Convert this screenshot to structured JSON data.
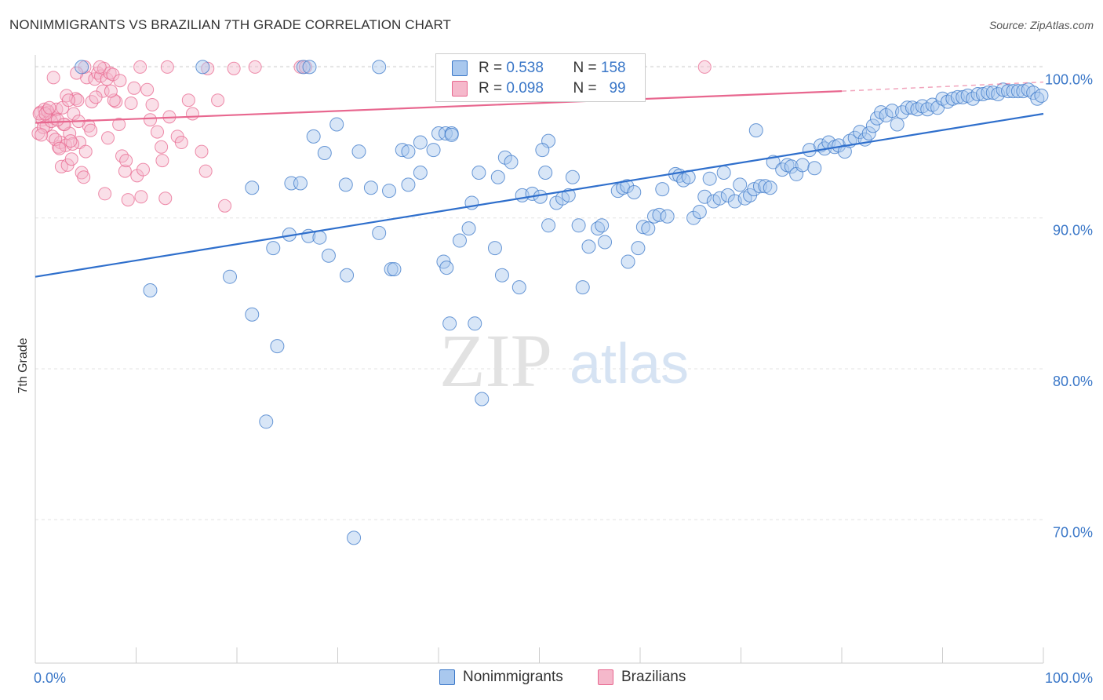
{
  "title": "NONIMMIGRANTS VS BRAZILIAN 7TH GRADE CORRELATION CHART",
  "source": "Source: ZipAtlas.com",
  "watermark": {
    "zip": "ZIP",
    "atlas": "atlas"
  },
  "legend": {
    "rows": [
      {
        "r_label": "R =",
        "r_value": "0.538",
        "n_label": "N =",
        "n_value": "158"
      },
      {
        "r_label": "R =",
        "r_value": "0.098",
        "n_label": "N =",
        "n_value": "99"
      }
    ]
  },
  "bottom_legend": {
    "series0": "Nonimmigrants",
    "series1": "Brazilians"
  },
  "colors": {
    "blue": "#3a77c8",
    "blue_fill": "#a9c8ee",
    "blue_line": "#2f6fcc",
    "pink": "#e8678f",
    "pink_fill": "#f5b8cb",
    "pink_line": "#e8678f",
    "grid": "#e3e3e3",
    "tick_label": "#3a77c8"
  },
  "chart_data": {
    "type": "scatter",
    "title": "NONIMMIGRANTS VS BRAZILIAN 7TH GRADE CORRELATION CHART",
    "xlabel": "",
    "ylabel": "7th Grade",
    "xlim": [
      0,
      100
    ],
    "ylim": [
      60.5,
      100.8
    ],
    "x_tick_labels": [
      "0.0%",
      "100.0%"
    ],
    "y_ticks": [
      70,
      80,
      90,
      100
    ],
    "y_tick_labels": [
      "70.0%",
      "80.0%",
      "90.0%",
      "100.0%"
    ],
    "grid": "horizontal dashed",
    "legend_position": "top-center",
    "series": [
      {
        "name": "Nonimmigrants",
        "r": 0.538,
        "n": 158,
        "trend": {
          "x0": 0,
          "y0": 86.1,
          "x1": 100,
          "y1": 96.9
        },
        "points": [
          [
            4.6,
            100
          ],
          [
            16.6,
            100
          ],
          [
            26.6,
            100
          ],
          [
            27.2,
            100
          ],
          [
            34.1,
            100
          ],
          [
            11.4,
            85.2
          ],
          [
            19.3,
            86.1
          ],
          [
            21.5,
            83.6
          ],
          [
            24,
            81.5
          ],
          [
            22.9,
            76.5
          ],
          [
            23.6,
            88
          ],
          [
            25.2,
            88.9
          ],
          [
            27.1,
            88.8
          ],
          [
            28.2,
            88.7
          ],
          [
            21.5,
            92
          ],
          [
            25.4,
            92.3
          ],
          [
            26.3,
            92.3
          ],
          [
            27.6,
            95.4
          ],
          [
            28.7,
            94.3
          ],
          [
            29.9,
            96.2
          ],
          [
            30.8,
            92.2
          ],
          [
            29.1,
            87.5
          ],
          [
            30.9,
            86.2
          ],
          [
            32.1,
            94.4
          ],
          [
            33.3,
            92
          ],
          [
            35.1,
            91.8
          ],
          [
            34.1,
            89
          ],
          [
            35.3,
            86.6
          ],
          [
            35.6,
            86.6
          ],
          [
            36.4,
            94.5
          ],
          [
            37,
            94.4
          ],
          [
            37,
            92.2
          ],
          [
            38.2,
            93
          ],
          [
            38.2,
            95
          ],
          [
            39.5,
            94.5
          ],
          [
            40,
            95.6
          ],
          [
            40.7,
            95.6
          ],
          [
            41.3,
            95.6
          ],
          [
            42.1,
            88.5
          ],
          [
            40.5,
            87.1
          ],
          [
            40.8,
            86.7
          ],
          [
            41.1,
            83
          ],
          [
            43,
            89.3
          ],
          [
            43.3,
            91
          ],
          [
            44,
            93
          ],
          [
            45.9,
            92.7
          ],
          [
            46.3,
            86.2
          ],
          [
            45.6,
            88
          ],
          [
            46.6,
            94
          ],
          [
            47.2,
            93.7
          ],
          [
            48,
            85.4
          ],
          [
            48.3,
            91.5
          ],
          [
            49.3,
            91.6
          ],
          [
            50.1,
            91.4
          ],
          [
            50.6,
            93
          ],
          [
            50.9,
            95.1
          ],
          [
            50.3,
            94.5
          ],
          [
            50.9,
            89.5
          ],
          [
            51.7,
            91
          ],
          [
            52.3,
            91.3
          ],
          [
            52.9,
            91.5
          ],
          [
            53.3,
            92.7
          ],
          [
            53.9,
            89.5
          ],
          [
            54.3,
            85.4
          ],
          [
            54.9,
            88.1
          ],
          [
            55.8,
            89.3
          ],
          [
            56.2,
            89.5
          ],
          [
            56.5,
            88.4
          ],
          [
            57.8,
            91.8
          ],
          [
            58.3,
            92
          ],
          [
            58.7,
            92.1
          ],
          [
            59.4,
            91.7
          ],
          [
            58.8,
            87.1
          ],
          [
            59.8,
            88
          ],
          [
            60.3,
            89.4
          ],
          [
            60.8,
            89.3
          ],
          [
            61.4,
            90.1
          ],
          [
            61.9,
            90.2
          ],
          [
            62.2,
            91.9
          ],
          [
            62.7,
            90.1
          ],
          [
            63.5,
            92.9
          ],
          [
            63.9,
            92.8
          ],
          [
            64.3,
            92.5
          ],
          [
            64.8,
            92.7
          ],
          [
            65.3,
            90
          ],
          [
            65.9,
            90.4
          ],
          [
            66.4,
            91.4
          ],
          [
            66.9,
            92.6
          ],
          [
            67.3,
            91.1
          ],
          [
            67.9,
            91.3
          ],
          [
            68.3,
            93
          ],
          [
            68.7,
            91.5
          ],
          [
            69.4,
            91.1
          ],
          [
            69.9,
            92.2
          ],
          [
            70.4,
            91.3
          ],
          [
            70.9,
            91.5
          ],
          [
            71.3,
            91.9
          ],
          [
            71.9,
            92.1
          ],
          [
            72.4,
            92.1
          ],
          [
            72.9,
            92
          ],
          [
            73.2,
            93.7
          ],
          [
            74.1,
            93.2
          ],
          [
            74.6,
            93.5
          ],
          [
            75,
            93.4
          ],
          [
            75.5,
            92.9
          ],
          [
            76.1,
            93.5
          ],
          [
            76.8,
            94.5
          ],
          [
            77.3,
            93.3
          ],
          [
            77.9,
            94.8
          ],
          [
            78.3,
            94.6
          ],
          [
            78.7,
            95
          ],
          [
            79.3,
            94.7
          ],
          [
            79.7,
            94.8
          ],
          [
            80.3,
            94.4
          ],
          [
            80.8,
            95.1
          ],
          [
            81.3,
            95.3
          ],
          [
            81.8,
            95.7
          ],
          [
            82.3,
            95.2
          ],
          [
            82.7,
            95.6
          ],
          [
            83.1,
            96.1
          ],
          [
            83.5,
            96.6
          ],
          [
            83.9,
            97
          ],
          [
            84.4,
            96.8
          ],
          [
            85,
            97.1
          ],
          [
            85.5,
            96.2
          ],
          [
            86,
            97
          ],
          [
            86.5,
            97.3
          ],
          [
            87,
            97.3
          ],
          [
            87.5,
            97.2
          ],
          [
            88,
            97.4
          ],
          [
            88.5,
            97.2
          ],
          [
            89,
            97.5
          ],
          [
            89.5,
            97.3
          ],
          [
            90,
            97.9
          ],
          [
            90.5,
            97.7
          ],
          [
            91,
            97.9
          ],
          [
            91.5,
            98
          ],
          [
            92,
            98
          ],
          [
            92.5,
            98.1
          ],
          [
            93,
            97.9
          ],
          [
            93.5,
            98.2
          ],
          [
            94,
            98.2
          ],
          [
            94.5,
            98.3
          ],
          [
            95,
            98.3
          ],
          [
            95.5,
            98.2
          ],
          [
            96,
            98.5
          ],
          [
            96.5,
            98.4
          ],
          [
            97,
            98.4
          ],
          [
            97.5,
            98.4
          ],
          [
            98,
            98.4
          ],
          [
            98.5,
            98.5
          ],
          [
            99,
            98.3
          ],
          [
            99.4,
            97.9
          ],
          [
            99.8,
            98.1
          ],
          [
            31.6,
            68.8
          ],
          [
            43.6,
            83
          ],
          [
            44.3,
            78
          ],
          [
            41.3,
            95.5
          ],
          [
            71.5,
            95.8
          ]
        ]
      },
      {
        "name": "Brazilians",
        "r": 0.098,
        "n": 99,
        "trend": {
          "x0": 0,
          "y0": 96.3,
          "x1": 80,
          "y1": 98.4,
          "dashed_to_x": 100,
          "dashed_to_y": 99.0
        },
        "points": [
          [
            0.3,
            95.6
          ],
          [
            0.5,
            97
          ],
          [
            0.7,
            96.5
          ],
          [
            0.9,
            97.2
          ],
          [
            1.1,
            96.1
          ],
          [
            1.3,
            97
          ],
          [
            1.5,
            96.8
          ],
          [
            1.7,
            95.4
          ],
          [
            1.9,
            96.6
          ],
          [
            2.1,
            97.2
          ],
          [
            2.3,
            94.7
          ],
          [
            2.5,
            95
          ],
          [
            2.6,
            93.4
          ],
          [
            2.8,
            96.2
          ],
          [
            3,
            94.8
          ],
          [
            3.2,
            93.5
          ],
          [
            3.4,
            95.6
          ],
          [
            3.6,
            93.9
          ],
          [
            3.8,
            96.9
          ],
          [
            4,
            97.9
          ],
          [
            4.2,
            97.8
          ],
          [
            4.4,
            95
          ],
          [
            4.6,
            93
          ],
          [
            4.8,
            92.7
          ],
          [
            5.1,
            99.3
          ],
          [
            5.3,
            96.1
          ],
          [
            5.6,
            97.7
          ],
          [
            5.9,
            99.2
          ],
          [
            6.2,
            99.6
          ],
          [
            6.5,
            99.4
          ],
          [
            6.8,
            99.9
          ],
          [
            7.1,
            99.2
          ],
          [
            7.4,
            99.6
          ],
          [
            7.7,
            99.5
          ],
          [
            8,
            97.7
          ],
          [
            8.3,
            96.2
          ],
          [
            8.6,
            94.1
          ],
          [
            8.9,
            93.1
          ],
          [
            9.2,
            91.2
          ],
          [
            9.5,
            97.6
          ],
          [
            10.1,
            92.8
          ],
          [
            10.5,
            91.4
          ],
          [
            11.1,
            98.5
          ],
          [
            11.6,
            97.5
          ],
          [
            12.1,
            95.7
          ],
          [
            12.5,
            94.7
          ],
          [
            12.9,
            91.3
          ],
          [
            13.3,
            96.7
          ],
          [
            14.1,
            95.4
          ],
          [
            14.5,
            95
          ],
          [
            15.2,
            97.8
          ],
          [
            15.6,
            96.9
          ],
          [
            16.5,
            94.4
          ],
          [
            16.9,
            93.1
          ],
          [
            17.1,
            99.9
          ],
          [
            18.1,
            97.8
          ],
          [
            18.8,
            90.8
          ],
          [
            19.7,
            99.9
          ],
          [
            21.8,
            100
          ],
          [
            26.3,
            100
          ],
          [
            26.8,
            100
          ],
          [
            66.4,
            100
          ],
          [
            4.9,
            100
          ],
          [
            6.4,
            100
          ],
          [
            10.4,
            100
          ],
          [
            13.1,
            100
          ],
          [
            1.8,
            99.3
          ],
          [
            3.1,
            98.1
          ],
          [
            4.1,
            99.6
          ],
          [
            6.7,
            98.4
          ],
          [
            7.8,
            97.8
          ],
          [
            9.8,
            98.6
          ],
          [
            0.4,
            96.9
          ],
          [
            0.8,
            96
          ],
          [
            1.2,
            97.1
          ],
          [
            1.6,
            96.4
          ],
          [
            2,
            95.2
          ],
          [
            2.4,
            94.6
          ],
          [
            2.7,
            97.3
          ],
          [
            2.9,
            96.2
          ],
          [
            3.3,
            97.8
          ],
          [
            3.7,
            94.9
          ],
          [
            4.3,
            96.4
          ],
          [
            5.5,
            95.8
          ],
          [
            6,
            98
          ],
          [
            7.2,
            95.3
          ],
          [
            8.4,
            99.1
          ],
          [
            9,
            93.8
          ],
          [
            11.4,
            96.5
          ],
          [
            12.6,
            93.8
          ],
          [
            0.6,
            95.5
          ],
          [
            1,
            96.9
          ],
          [
            1.4,
            97.3
          ],
          [
            2.2,
            96.5
          ],
          [
            3.5,
            95.1
          ],
          [
            5,
            94.4
          ],
          [
            6.9,
            91.6
          ],
          [
            10.7,
            93.2
          ],
          [
            7.5,
            98.4
          ]
        ]
      }
    ]
  }
}
